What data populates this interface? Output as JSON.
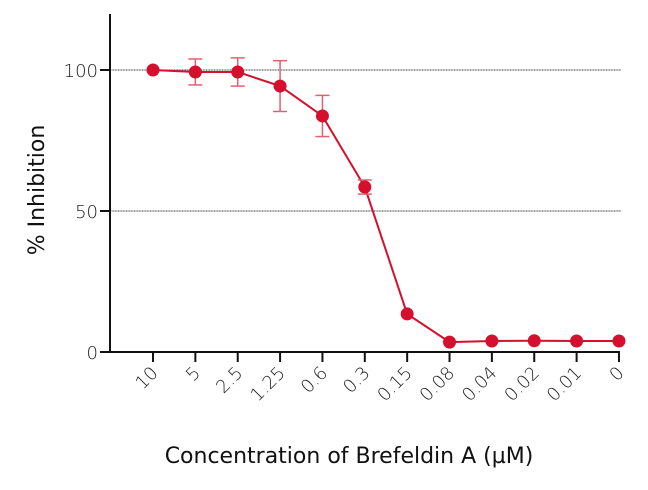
{
  "chart_data": {
    "type": "line",
    "title": "",
    "xlabel": "Concentration of Brefeldin A (µM)",
    "ylabel": "% Inhibition",
    "categories": [
      "10",
      "5",
      "2.5",
      "1.25",
      "0.6",
      "0.3",
      "0.15",
      "0.08",
      "0.04",
      "0.02",
      "0.01",
      "0"
    ],
    "series": [
      {
        "name": "Brefeldin A",
        "color": "#d4102e",
        "values": [
          100,
          99.3,
          99.3,
          94.3,
          83.7,
          58.5,
          13.5,
          3.5,
          3.9,
          4.0,
          3.9,
          3.9
        ],
        "error": [
          0,
          4.6,
          5.0,
          9.0,
          7.3,
          2.5,
          0,
          0,
          0,
          0,
          0,
          0
        ]
      }
    ],
    "ylim": [
      0,
      120
    ],
    "yticks": [
      0,
      50,
      100
    ],
    "ytick_labels": [
      "0",
      "50",
      "100"
    ],
    "gridlines_y": [
      50,
      100
    ],
    "grid": true,
    "legend": null,
    "xtick_rotation": -45
  },
  "colors": {
    "series": "#d4102e",
    "errorbar": "#e06070",
    "axis": "#111111",
    "grid": "#333333"
  }
}
